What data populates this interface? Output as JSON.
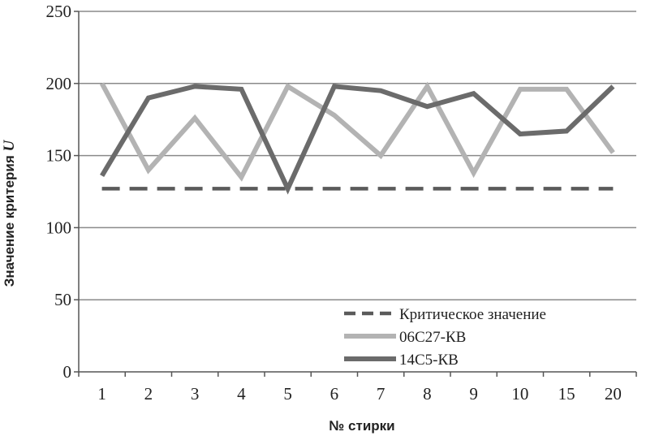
{
  "chart_data": {
    "type": "line",
    "title": "",
    "xlabel": "№ стирки",
    "ylabel_main": "Значение критерия ",
    "ylabel_var": "U",
    "categories": [
      "1",
      "2",
      "3",
      "4",
      "5",
      "6",
      "7",
      "8",
      "9",
      "10",
      "15",
      "20"
    ],
    "ylim": [
      0,
      250
    ],
    "yticks": [
      "0",
      "50",
      "100",
      "150",
      "200",
      "250"
    ],
    "grid": "horizontal",
    "legend_position": "bottom-right",
    "series": [
      {
        "name": "Критическое значение",
        "style": "dashed",
        "color": "#5a5a5a",
        "values": [
          127,
          127,
          127,
          127,
          127,
          127,
          127,
          127,
          127,
          127,
          127,
          127
        ]
      },
      {
        "name": "06С27-КВ",
        "style": "solid",
        "color": "#b3b3b3",
        "values": [
          200,
          140,
          176,
          135,
          198,
          178,
          150,
          198,
          138,
          196,
          196,
          152
        ]
      },
      {
        "name": "14С5-КВ",
        "style": "solid",
        "color": "#6b6b6b",
        "values": [
          136,
          190,
          198,
          196,
          127,
          198,
          195,
          184,
          193,
          165,
          167,
          198
        ]
      }
    ]
  }
}
